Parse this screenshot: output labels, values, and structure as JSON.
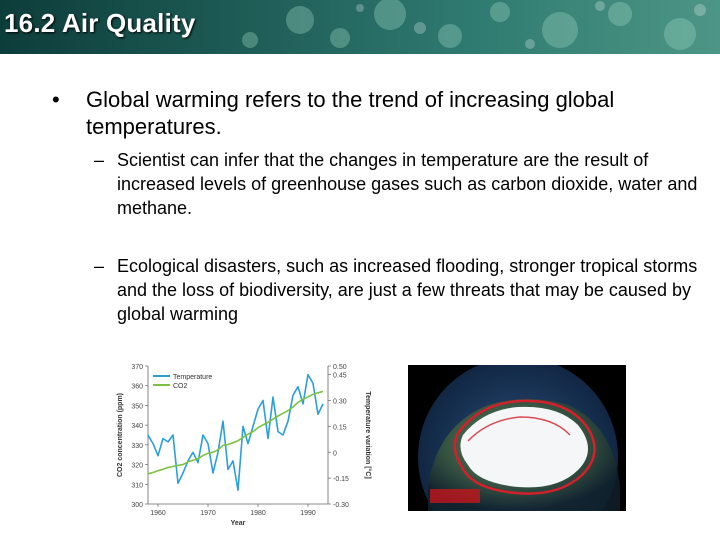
{
  "header": {
    "title": "16.2 Air Quality"
  },
  "content": {
    "bullet_main": "Global warming refers to the trend of increasing global temperatures.",
    "sub_bullets": [
      "Scientist can infer that the changes in temperature are the result of increased levels of greenhouse gases such as carbon dioxide, water and methane.",
      "Ecological disasters, such as increased flooding, stronger tropical storms and the loss of biodiversity, are just a few threats that may be caused by global warming"
    ]
  },
  "chart_data": {
    "type": "line",
    "xlabel": "Year",
    "ylabel": "CO2 concentration (ppm)",
    "y2label": "Temperature variation [°C]",
    "xlim": [
      1958,
      1994
    ],
    "ylim": [
      300,
      370
    ],
    "y2lim": [
      -0.3,
      0.5
    ],
    "x_ticks": [
      "1960",
      "1970",
      "1980",
      "1990"
    ],
    "y_ticks": [
      "300",
      "310",
      "320",
      "330",
      "340",
      "350",
      "360",
      "370"
    ],
    "y2_ticks": [
      "-0.30",
      "-0.15",
      "0",
      "0.15",
      "0.30",
      "0.45",
      "0.50"
    ],
    "series": [
      {
        "name": "Temperature",
        "color": "#2a9fd8",
        "axis": "right",
        "x": [
          1958,
          1959,
          1960,
          1961,
          1962,
          1963,
          1964,
          1965,
          1966,
          1967,
          1968,
          1969,
          1970,
          1971,
          1972,
          1973,
          1974,
          1975,
          1976,
          1977,
          1978,
          1979,
          1980,
          1981,
          1982,
          1983,
          1984,
          1985,
          1986,
          1987,
          1988,
          1989,
          1990,
          1991,
          1992,
          1993
        ],
        "values": [
          0.1,
          0.05,
          -0.02,
          0.08,
          0.06,
          0.1,
          -0.18,
          -0.12,
          -0.05,
          0.0,
          -0.06,
          0.1,
          0.05,
          -0.12,
          0.0,
          0.18,
          -0.1,
          -0.05,
          -0.22,
          0.15,
          0.05,
          0.15,
          0.25,
          0.3,
          0.08,
          0.32,
          0.12,
          0.1,
          0.18,
          0.33,
          0.38,
          0.28,
          0.45,
          0.4,
          0.22,
          0.28
        ]
      },
      {
        "name": "CO2",
        "color": "#7dc142",
        "axis": "left",
        "x": [
          1958,
          1959,
          1960,
          1961,
          1962,
          1963,
          1964,
          1965,
          1966,
          1967,
          1968,
          1969,
          1970,
          1971,
          1972,
          1973,
          1974,
          1975,
          1976,
          1977,
          1978,
          1979,
          1980,
          1981,
          1982,
          1983,
          1984,
          1985,
          1986,
          1987,
          1988,
          1989,
          1990,
          1991,
          1992,
          1993
        ],
        "values": [
          315.3,
          316.0,
          316.9,
          317.6,
          318.5,
          319.0,
          319.6,
          320.0,
          321.4,
          322.2,
          323.0,
          324.6,
          325.7,
          326.3,
          327.5,
          329.7,
          330.2,
          331.1,
          332.1,
          333.8,
          335.4,
          336.8,
          338.7,
          340.1,
          341.4,
          343.0,
          344.6,
          346.0,
          347.4,
          349.2,
          351.6,
          353.1,
          354.4,
          355.6,
          356.4,
          357.1
        ]
      }
    ],
    "legend": "top-left"
  },
  "photo": {
    "caption": "Arctic sea ice extent map"
  }
}
